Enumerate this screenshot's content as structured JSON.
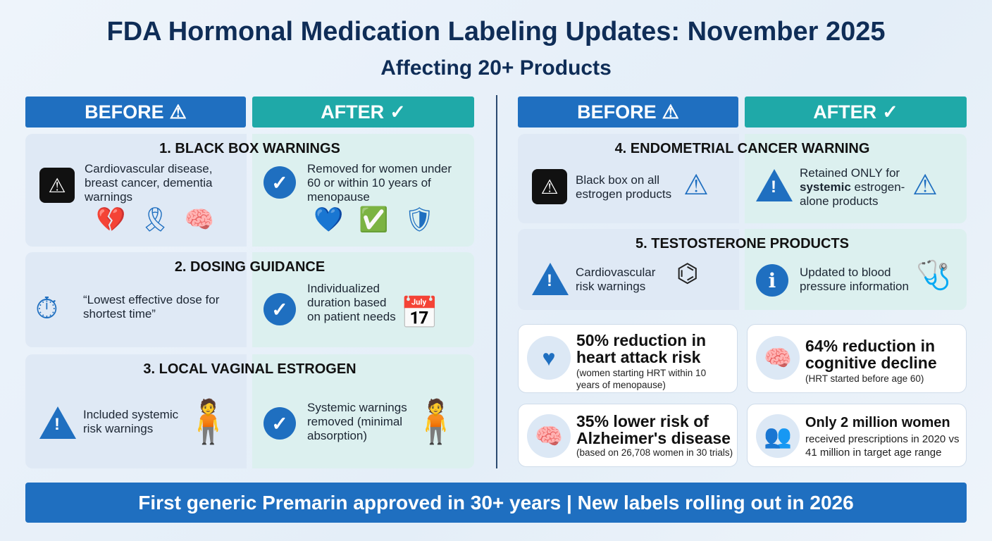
{
  "title": "FDA Hormonal Medication Labeling Updates: November 2025",
  "subtitle": "Affecting 20+ Products",
  "headers": {
    "before": "BEFORE",
    "after": "AFTER",
    "before_icon": "warning-triangle-icon",
    "after_icon": "checkmark-icon"
  },
  "sections": [
    {
      "title": "1. BLACK BOX WARNINGS",
      "before": "Cardiovascular disease, breast cancer, dementia warnings",
      "after": "Removed for women under 60 or within 10 years of menopause"
    },
    {
      "title": "2. DOSING GUIDANCE",
      "before": "“Lowest effective dose for shortest time”",
      "after": "Individualized duration based on patient needs"
    },
    {
      "title": "3. LOCAL VAGINAL ESTROGEN",
      "before": "Included systemic risk warnings",
      "after": "Systemic warnings removed (minimal absorption)"
    },
    {
      "title": "4. ENDOMETRIAL CANCER WARNING",
      "before": "Black box on all estrogen products",
      "after_pre": "Retained ONLY for ",
      "after_bold": "systemic",
      "after_post": " estrogen-alone products"
    },
    {
      "title": "5. TESTOSTERONE PRODUCTS",
      "before": "Cardiovascular risk warnings",
      "after": "Updated to blood pressure information"
    }
  ],
  "stats": [
    {
      "headline": "50% reduction in heart attack risk",
      "detail": "(women starting HRT within 10 years of menopause)",
      "icon": "heart-icon"
    },
    {
      "headline": "64% reduction in cognitive decline",
      "detail": "(HRT started before age 60)",
      "icon": "brain-icon"
    },
    {
      "headline": "35% lower risk of Alzheimer's disease",
      "detail": "(based on 26,708 women in 30 trials)",
      "icon": "brain-icon"
    },
    {
      "headline": "Only 2 million women",
      "detail": "received prescriptions in 2020 vs 41 million in target age range",
      "icon": "women-icon"
    }
  ],
  "footer": "First generic Premarin approved in 30+ years |  New labels rolling out in 2026",
  "colors": {
    "blue": "#1f6fc0",
    "teal": "#1fa9a8",
    "navy": "#0f2d57"
  }
}
